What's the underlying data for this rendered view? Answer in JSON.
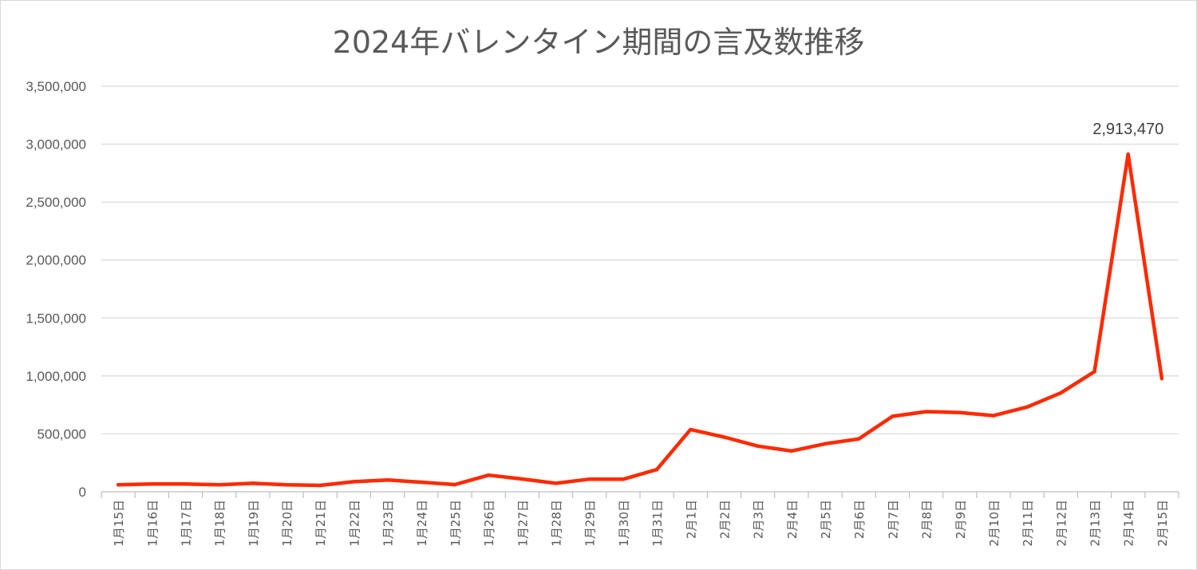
{
  "chart_data": {
    "type": "line",
    "title": "2024年バレンタイン期間の言及数推移",
    "xlabel": "",
    "ylabel": "",
    "ylim": [
      0,
      3500000
    ],
    "yticks": [
      0,
      500000,
      1000000,
      1500000,
      2000000,
      2500000,
      3000000,
      3500000
    ],
    "ytick_labels": [
      "0",
      "500,000",
      "1,000,000",
      "1,500,000",
      "2,000,000",
      "2,500,000",
      "3,000,000",
      "3,500,000"
    ],
    "grid": true,
    "legend": "none",
    "line_color": "#ff2a00",
    "categories": [
      "1月15日",
      "1月16日",
      "1月17日",
      "1月18日",
      "1月19日",
      "1月20日",
      "1月21日",
      "1月22日",
      "1月23日",
      "1月24日",
      "1月25日",
      "1月26日",
      "1月27日",
      "1月28日",
      "1月29日",
      "1月30日",
      "1月31日",
      "2月1日",
      "2月2日",
      "2月3日",
      "2月4日",
      "2月5日",
      "2月6日",
      "2月7日",
      "2月8日",
      "2月9日",
      "2月10日",
      "2月11日",
      "2月12日",
      "2月13日",
      "2月14日",
      "2月15日"
    ],
    "series": [
      {
        "values": [
          60000,
          67000,
          67000,
          60000,
          73000,
          60000,
          55000,
          87000,
          101000,
          83000,
          62000,
          143000,
          110000,
          73000,
          109000,
          108000,
          192000,
          537000,
          472000,
          394000,
          352000,
          414000,
          456000,
          651000,
          692000,
          684000,
          657000,
          732000,
          853000,
          1037000,
          2913470,
          977000
        ]
      }
    ],
    "annotations": [
      {
        "category": "2月14日",
        "text": "2,913,470"
      }
    ]
  }
}
